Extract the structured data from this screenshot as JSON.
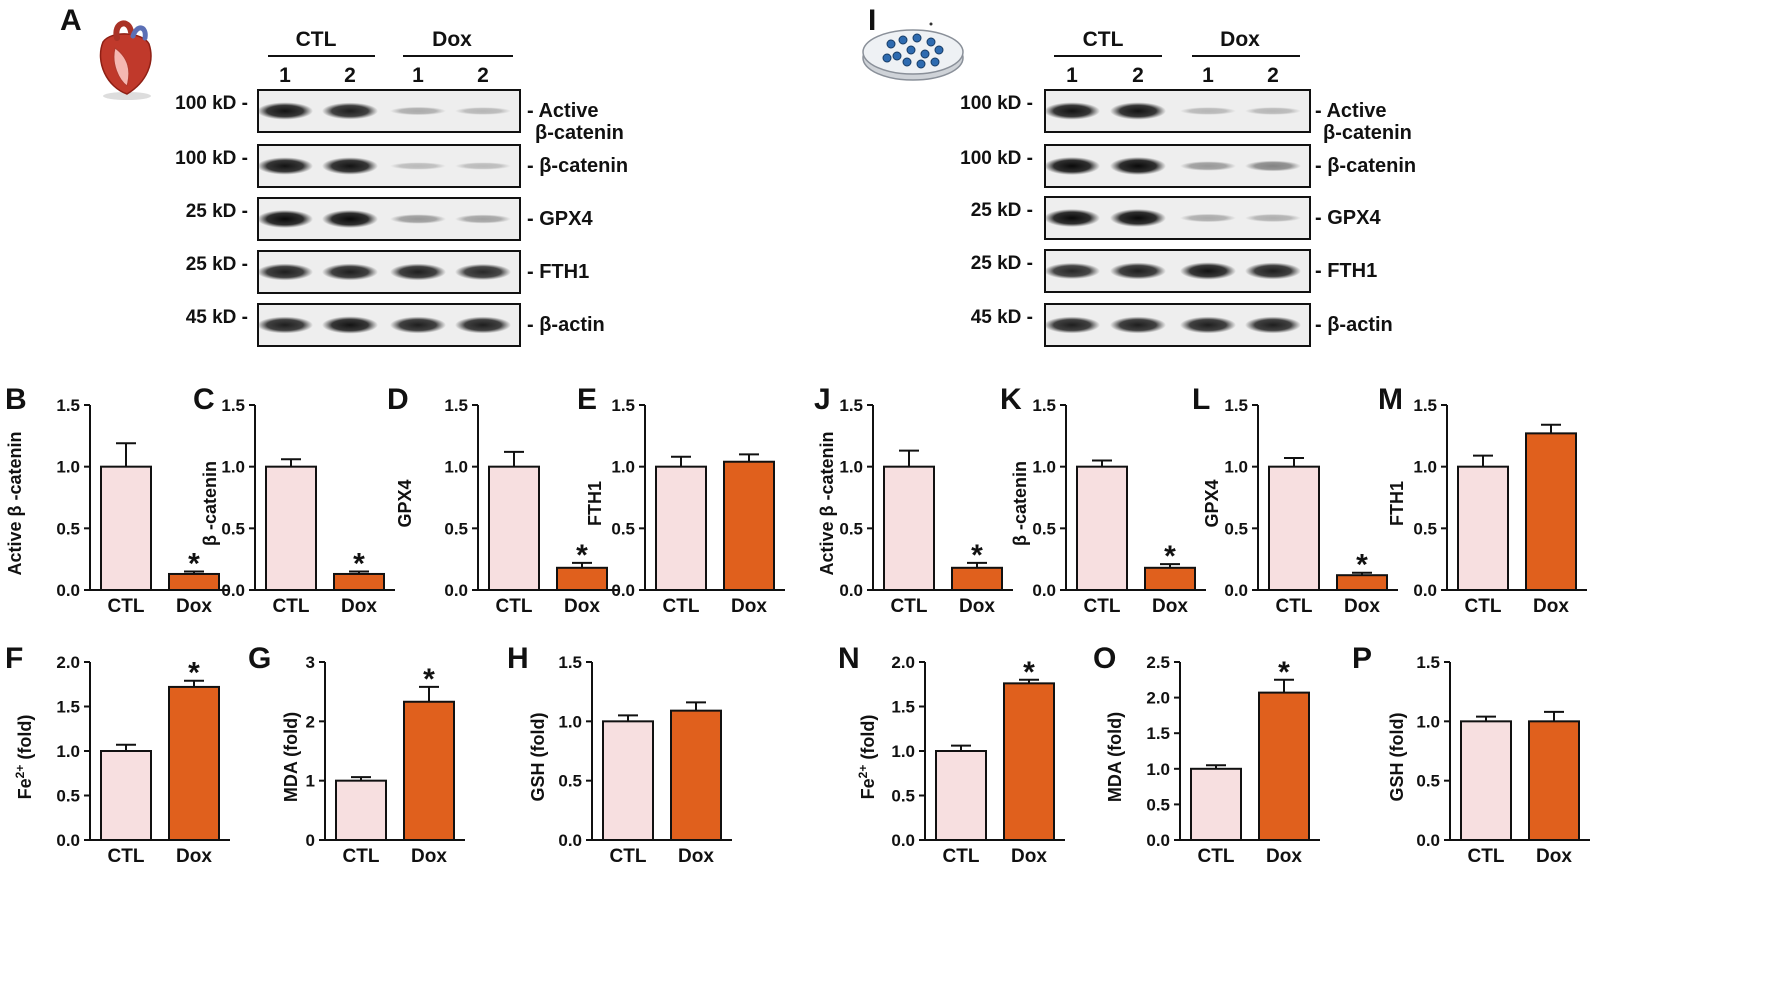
{
  "colors": {
    "ctl": "#f7dfe0",
    "dox": "#e0601d",
    "axis": "#111111"
  },
  "blot_panels": [
    {
      "letter": "A",
      "icon": "heart-icon",
      "groups": [
        "CTL",
        "Dox"
      ],
      "lanes": [
        "1",
        "2",
        "1",
        "2"
      ],
      "rows": [
        {
          "kd": "100 kD -",
          "label": [
            "- Active",
            "β-catenin"
          ],
          "intensity": [
            0.95,
            0.9,
            0.2,
            0.15
          ]
        },
        {
          "kd": "100 kD -",
          "label": [
            "- β-catenin"
          ],
          "intensity": [
            0.95,
            0.95,
            0.12,
            0.12
          ]
        },
        {
          "kd": "25 kD -",
          "label": [
            "- GPX4"
          ],
          "intensity": [
            1.0,
            1.0,
            0.3,
            0.25
          ]
        },
        {
          "kd": "25 kD -",
          "label": [
            "- FTH1"
          ],
          "intensity": [
            0.9,
            0.9,
            0.9,
            0.85
          ]
        },
        {
          "kd": "45 kD -",
          "label": [
            "- β-actin"
          ],
          "intensity": [
            0.9,
            0.95,
            0.9,
            0.9
          ]
        }
      ]
    },
    {
      "letter": "I",
      "icon": "cell-dish-icon",
      "groups": [
        "CTL",
        "Dox"
      ],
      "lanes": [
        "1",
        "2",
        "1",
        "2"
      ],
      "rows": [
        {
          "kd": "100 kD -",
          "label": [
            "- Active",
            "β-catenin"
          ],
          "intensity": [
            0.95,
            0.95,
            0.15,
            0.15
          ]
        },
        {
          "kd": "100 kD -",
          "label": [
            "- β-catenin"
          ],
          "intensity": [
            1.0,
            1.0,
            0.3,
            0.4
          ]
        },
        {
          "kd": "25 kD -",
          "label": [
            "- GPX4"
          ],
          "intensity": [
            1.0,
            1.0,
            0.2,
            0.18
          ]
        },
        {
          "kd": "25 kD -",
          "label": [
            "- FTH1"
          ],
          "intensity": [
            0.85,
            0.9,
            0.95,
            0.9
          ]
        },
        {
          "kd": "45 kD -",
          "label": [
            "- β-actin"
          ],
          "intensity": [
            0.9,
            0.9,
            0.9,
            0.9
          ]
        }
      ]
    }
  ],
  "chart_data": [
    {
      "letter": "B",
      "type": "bar",
      "categories": [
        "CTL",
        "Dox"
      ],
      "values": [
        1.0,
        0.13
      ],
      "errors": [
        0.19,
        0.02
      ],
      "ylabel": "Active β -catenin",
      "ylim": [
        0,
        1.5
      ],
      "ticks": [
        "0.0",
        "0.5",
        "1.0",
        "1.5"
      ],
      "significant": [
        false,
        true
      ]
    },
    {
      "letter": "C",
      "type": "bar",
      "categories": [
        "CTL",
        "Dox"
      ],
      "values": [
        1.0,
        0.13
      ],
      "errors": [
        0.06,
        0.02
      ],
      "ylabel": "β -catenin",
      "ylim": [
        0,
        1.5
      ],
      "ticks": [
        "0.0",
        "0.5",
        "1.0",
        "1.5"
      ],
      "significant": [
        false,
        true
      ]
    },
    {
      "letter": "D",
      "type": "bar",
      "categories": [
        "CTL",
        "Dox"
      ],
      "values": [
        1.0,
        0.18
      ],
      "errors": [
        0.12,
        0.04
      ],
      "ylabel": "GPX4",
      "ylim": [
        0,
        1.5
      ],
      "ticks": [
        "0.0",
        "0.5",
        "1.0",
        "1.5"
      ],
      "significant": [
        false,
        true
      ]
    },
    {
      "letter": "E",
      "type": "bar",
      "categories": [
        "CTL",
        "Dox"
      ],
      "values": [
        1.0,
        1.04
      ],
      "errors": [
        0.08,
        0.06
      ],
      "ylabel": "FTH1",
      "ylim": [
        0,
        1.5
      ],
      "ticks": [
        "0.0",
        "0.5",
        "1.0",
        "1.5"
      ],
      "significant": [
        false,
        false
      ]
    },
    {
      "letter": "J",
      "type": "bar",
      "categories": [
        "CTL",
        "Dox"
      ],
      "values": [
        1.0,
        0.18
      ],
      "errors": [
        0.13,
        0.04
      ],
      "ylabel": "Active β -catenin",
      "ylim": [
        0,
        1.5
      ],
      "ticks": [
        "0.0",
        "0.5",
        "1.0",
        "1.5"
      ],
      "significant": [
        false,
        true
      ]
    },
    {
      "letter": "K",
      "type": "bar",
      "categories": [
        "CTL",
        "Dox"
      ],
      "values": [
        1.0,
        0.18
      ],
      "errors": [
        0.05,
        0.03
      ],
      "ylabel": "β -catenin",
      "ylim": [
        0,
        1.5
      ],
      "ticks": [
        "0.0",
        "0.5",
        "1.0",
        "1.5"
      ],
      "significant": [
        false,
        true
      ]
    },
    {
      "letter": "L",
      "type": "bar",
      "categories": [
        "CTL",
        "Dox"
      ],
      "values": [
        1.0,
        0.12
      ],
      "errors": [
        0.07,
        0.02
      ],
      "ylabel": "GPX4",
      "ylim": [
        0,
        1.5
      ],
      "ticks": [
        "0.0",
        "0.5",
        "1.0",
        "1.5"
      ],
      "significant": [
        false,
        true
      ]
    },
    {
      "letter": "M",
      "type": "bar",
      "categories": [
        "CTL",
        "Dox"
      ],
      "values": [
        1.0,
        1.27
      ],
      "errors": [
        0.09,
        0.07
      ],
      "ylabel": "FTH1",
      "ylim": [
        0,
        1.5
      ],
      "ticks": [
        "0.0",
        "0.5",
        "1.0",
        "1.5"
      ],
      "significant": [
        false,
        false
      ]
    },
    {
      "letter": "F",
      "type": "bar",
      "categories": [
        "CTL",
        "Dox"
      ],
      "values": [
        1.0,
        1.72
      ],
      "errors": [
        0.07,
        0.07
      ],
      "ylabel": "Fe2+ (fold)",
      "ylabel_parts": [
        "Fe",
        "2+",
        " (fold)"
      ],
      "ylim": [
        0,
        2.0
      ],
      "ticks": [
        "0.0",
        "0.5",
        "1.0",
        "1.5",
        "2.0"
      ],
      "significant": [
        false,
        true
      ]
    },
    {
      "letter": "G",
      "type": "bar",
      "categories": [
        "CTL",
        "Dox"
      ],
      "values": [
        1.0,
        2.33
      ],
      "errors": [
        0.06,
        0.25
      ],
      "ylabel": "MDA (fold)",
      "ylim": [
        0,
        3
      ],
      "ticks": [
        "0",
        "1",
        "2",
        "3"
      ],
      "significant": [
        false,
        true
      ]
    },
    {
      "letter": "H",
      "type": "bar",
      "categories": [
        "CTL",
        "Dox"
      ],
      "values": [
        1.0,
        1.09
      ],
      "errors": [
        0.05,
        0.07
      ],
      "ylabel": "GSH (fold)",
      "ylim": [
        0,
        1.5
      ],
      "ticks": [
        "0.0",
        "0.5",
        "1.0",
        "1.5"
      ],
      "significant": [
        false,
        false
      ]
    },
    {
      "letter": "N",
      "type": "bar",
      "categories": [
        "CTL",
        "Dox"
      ],
      "values": [
        1.0,
        1.76
      ],
      "errors": [
        0.06,
        0.04
      ],
      "ylabel": "Fe2+ (fold)",
      "ylabel_parts": [
        "Fe",
        "2+",
        " (fold)"
      ],
      "ylim": [
        0,
        2.0
      ],
      "ticks": [
        "0.0",
        "0.5",
        "1.0",
        "1.5",
        "2.0"
      ],
      "significant": [
        false,
        true
      ]
    },
    {
      "letter": "O",
      "type": "bar",
      "categories": [
        "CTL",
        "Dox"
      ],
      "values": [
        1.0,
        2.07
      ],
      "errors": [
        0.05,
        0.18
      ],
      "ylabel": "MDA (fold)",
      "ylim": [
        0,
        2.5
      ],
      "ticks": [
        "0.0",
        "0.5",
        "1.0",
        "1.5",
        "2.0",
        "2.5"
      ],
      "significant": [
        false,
        true
      ]
    },
    {
      "letter": "P",
      "type": "bar",
      "categories": [
        "CTL",
        "Dox"
      ],
      "values": [
        1.0,
        1.0
      ],
      "errors": [
        0.04,
        0.08
      ],
      "ylabel": "GSH (fold)",
      "ylim": [
        0,
        1.5
      ],
      "ticks": [
        "0.0",
        "0.5",
        "1.0",
        "1.5"
      ],
      "significant": [
        false,
        false
      ]
    }
  ],
  "significance_marker": "*"
}
